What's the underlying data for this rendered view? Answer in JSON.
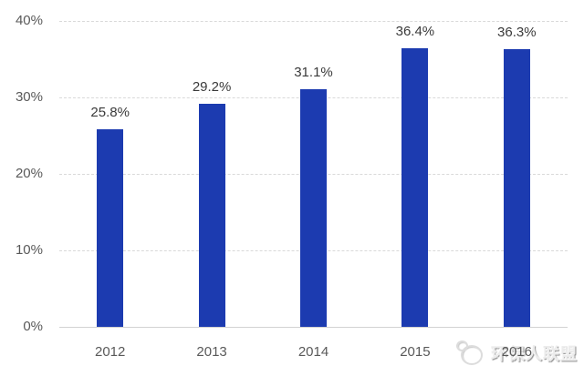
{
  "chart_data": {
    "type": "bar",
    "title": "",
    "xlabel": "",
    "ylabel": "",
    "categories": [
      "2012",
      "2013",
      "2014",
      "2015",
      "2016"
    ],
    "values": [
      25.8,
      29.2,
      31.1,
      36.4,
      36.3
    ],
    "value_labels": [
      "25.8%",
      "29.2%",
      "31.1%",
      "36.4%",
      "36.3%"
    ],
    "ylim": [
      0,
      40
    ],
    "y_ticks": [
      {
        "label": "0%",
        "value": 0
      },
      {
        "label": "10%",
        "value": 10
      },
      {
        "label": "20%",
        "value": 20
      },
      {
        "label": "30%",
        "value": 30
      },
      {
        "label": "40%",
        "value": 40
      }
    ],
    "grid": "horizontal-dashed",
    "legend": "none",
    "colors": {
      "bar": "#1c3bb0",
      "gridline": "#d9d9d9",
      "axis_line": "#d2d2d2",
      "tick_label": "#595959",
      "value_label": "#3a3a3a"
    }
  },
  "watermark": {
    "text": "环保人联盟",
    "logo": "circles-logo"
  }
}
